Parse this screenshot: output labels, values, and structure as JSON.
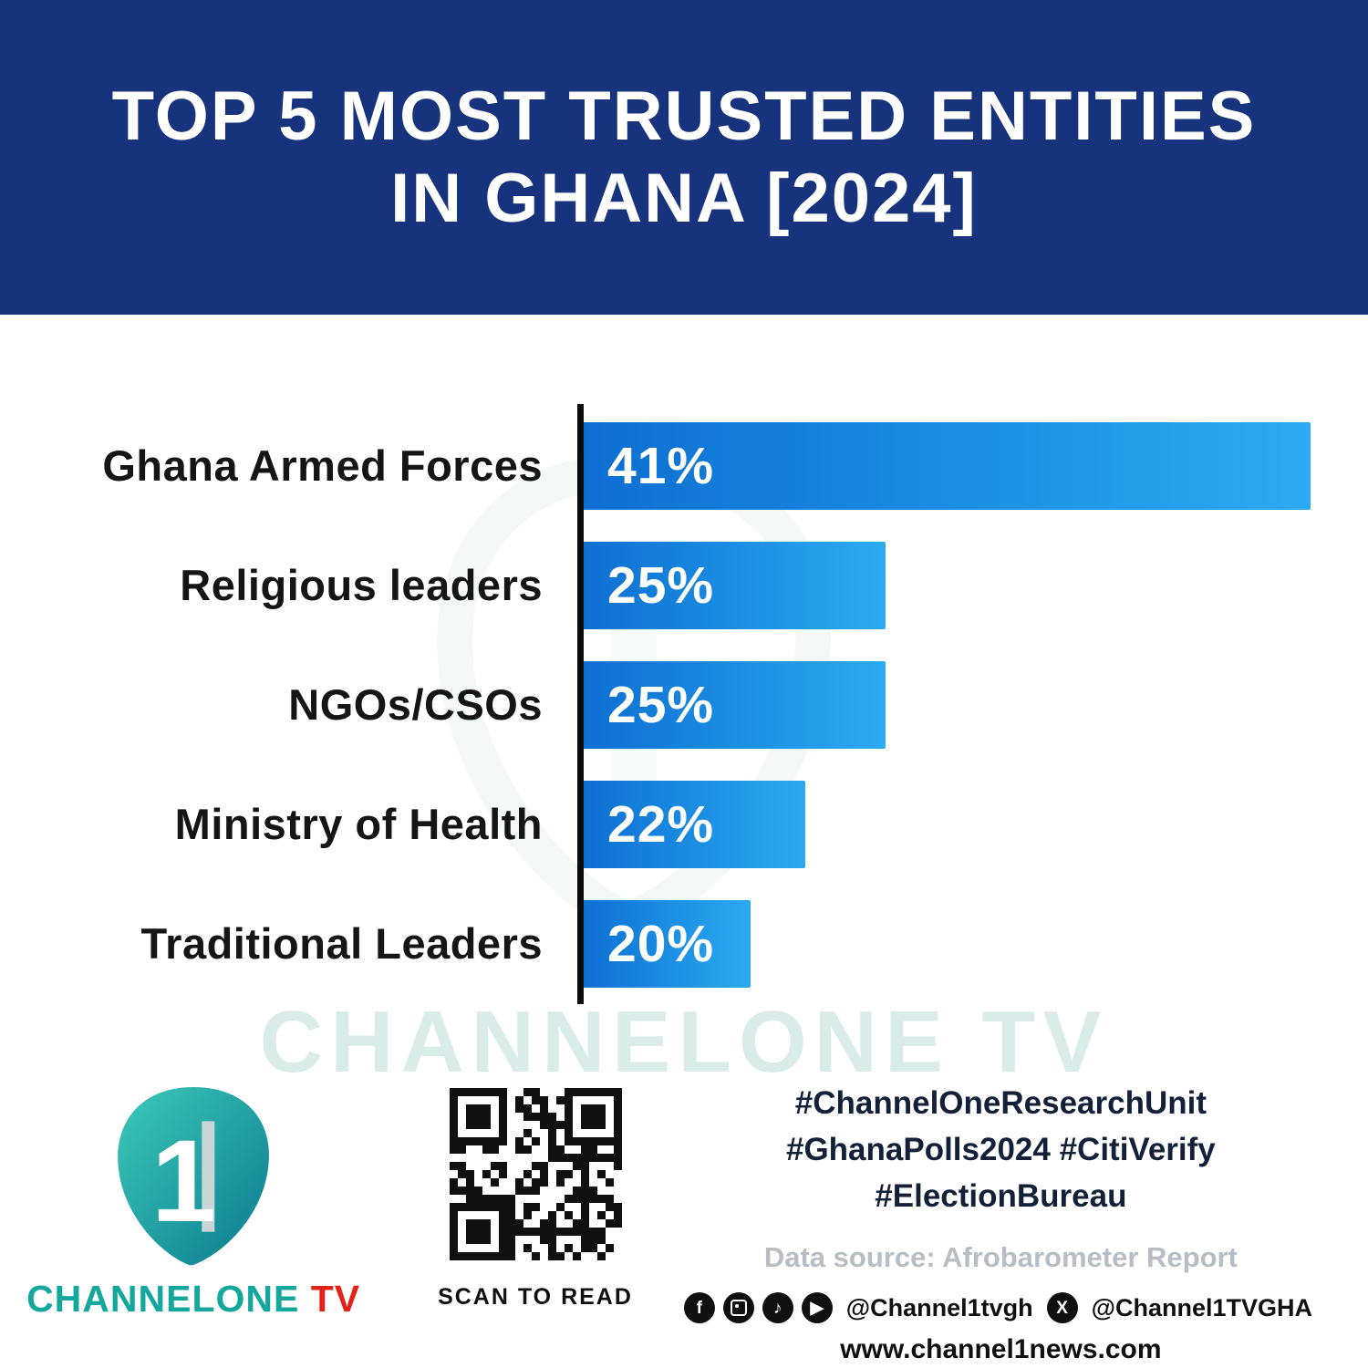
{
  "header": {
    "title_line1": "TOP 5 MOST TRUSTED ENTITIES",
    "title_line2": "IN GHANA [2024]"
  },
  "chart_data": {
    "type": "bar",
    "orientation": "horizontal",
    "title": "Top 5 Most Trusted Entities in Ghana [2024]",
    "categories": [
      "Ghana Armed Forces",
      "Religious leaders",
      "NGOs/CSOs",
      "Ministry of Health",
      "Traditional Leaders"
    ],
    "values": [
      41,
      25,
      25,
      22,
      20
    ],
    "value_labels": [
      "41%",
      "25%",
      "25%",
      "22%",
      "20%"
    ],
    "unit": "%",
    "xlabel": "",
    "ylabel": "",
    "legend": false,
    "grid": false,
    "bar_color_start": "#0d6fd2",
    "bar_color_end": "#2aabf2",
    "bar_visual_widths_pct": [
      100,
      41.5,
      41.5,
      30.5,
      23
    ]
  },
  "watermark": {
    "text": "CHANNELONE TV"
  },
  "footer": {
    "logo": {
      "numeral": "1",
      "brand_channelone": "CHANNELONE",
      "brand_tv": " TV"
    },
    "qr": {
      "caption": "SCAN TO READ"
    },
    "hashtags_line1": "#ChannelOneResearchUnit",
    "hashtags_line2": "#GhanaPolls2024 #CitiVerify",
    "hashtags_line3": "#ElectionBureau",
    "source": "Data source: Afrobarometer Report",
    "social": {
      "icons": [
        "facebook-icon",
        "instagram-icon",
        "tiktok-icon",
        "youtube-icon"
      ],
      "handle1": "@Channel1tvgh",
      "x_icon": "x-icon",
      "handle2": "@Channel1TVGHA"
    },
    "website": "www.channel1news.com"
  },
  "colors": {
    "header_navy": "#17337e",
    "bar_gradient_start": "#0d6fd2",
    "bar_gradient_end": "#2aabf2",
    "axis_black": "#0c0c0c",
    "watermark_teal": "#d9ece8",
    "brand_teal": "#14a79b",
    "brand_red": "#e42318",
    "hashtag_navy": "#14203a",
    "source_gray": "#b8bdc4"
  }
}
